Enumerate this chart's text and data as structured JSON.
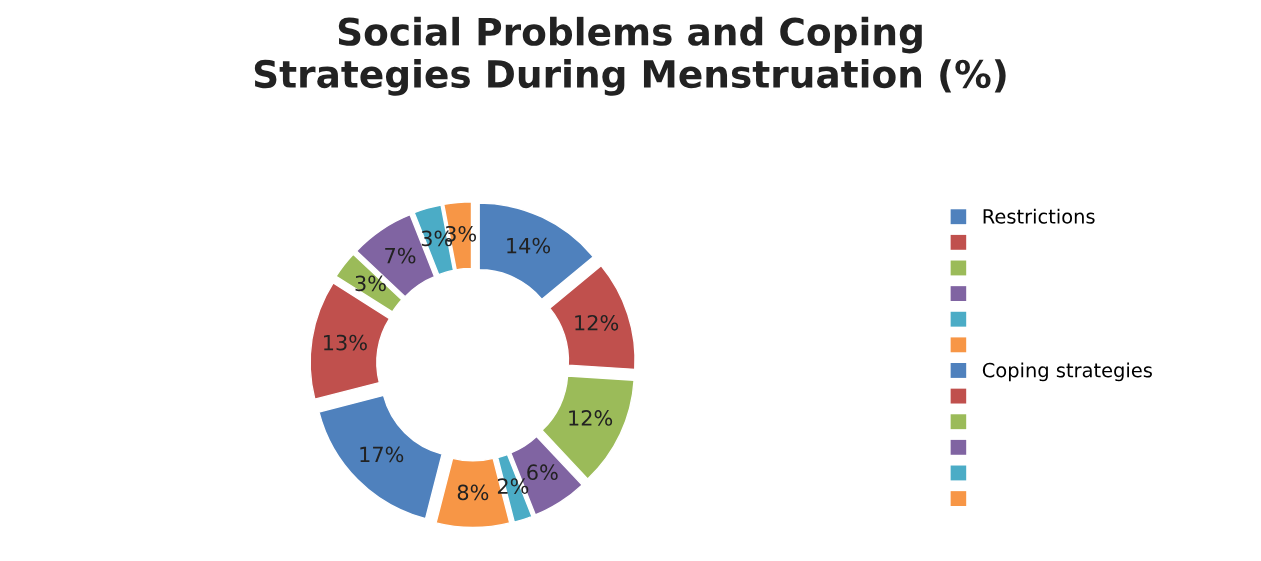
{
  "chart_data": {
    "type": "donut",
    "title": "Social Problems and Coping\nStrategies During Menstruation (%)",
    "categories": [
      "Restrictions",
      null,
      null,
      null,
      null,
      null,
      "Coping strategies",
      null,
      null,
      null,
      null,
      null
    ],
    "values": [
      14,
      12,
      12,
      6,
      2,
      8,
      17,
      13,
      3,
      7,
      3,
      3
    ],
    "value_labels": [
      "14%",
      "12%",
      "12%",
      "6%",
      "2%",
      "8%",
      "17%",
      "13%",
      "3%",
      "7%",
      "3%",
      "3%"
    ],
    "colors": [
      "#4f81bd",
      "#c0504d",
      "#9bbb59",
      "#8064a2",
      "#4bacc6",
      "#f79646",
      "#4f81bd",
      "#c0504d",
      "#9bbb59",
      "#8064a2",
      "#4bacc6",
      "#f79646"
    ],
    "legend": "right"
  }
}
